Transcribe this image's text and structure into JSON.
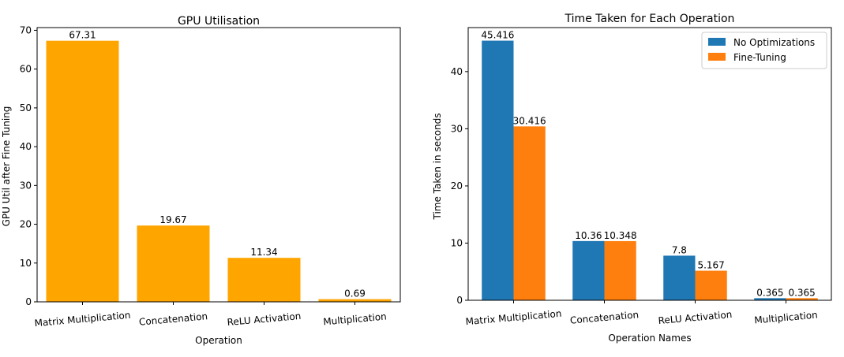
{
  "chart_data": [
    {
      "type": "bar",
      "title": "GPU Utilisation",
      "xlabel": "Operation",
      "ylabel": "GPU Util after Fine Tuning",
      "categories": [
        "Matrix Multiplication",
        "Concatenation",
        "ReLU Activation",
        "Multiplication"
      ],
      "values": [
        67.31,
        19.67,
        11.34,
        0.69
      ],
      "data_labels": [
        "67.31",
        "19.67",
        "11.34",
        "0.69"
      ],
      "yticks": [
        0,
        10,
        20,
        30,
        40,
        50,
        60,
        70
      ],
      "ylim": [
        0,
        70.7
      ],
      "color": "#ffa500",
      "grid": false
    },
    {
      "type": "bar",
      "title": "Time Taken for Each Operation",
      "xlabel": "Operation Names",
      "ylabel": "Time Taken in seconds",
      "categories": [
        "Matrix Multiplication",
        "Concatenation",
        "ReLU Activation",
        "Multiplication"
      ],
      "series": [
        {
          "name": "No Optimizations",
          "color": "#1f77b4",
          "values": [
            45.416,
            10.36,
            7.8,
            0.365
          ],
          "data_labels": [
            "45.416",
            "10.36",
            "7.8",
            "0.365"
          ]
        },
        {
          "name": "Fine-Tuning",
          "color": "#ff7f0e",
          "values": [
            30.416,
            10.348,
            5.167,
            0.365
          ],
          "data_labels": [
            "30.416",
            "10.348",
            "5.167",
            "0.365"
          ]
        }
      ],
      "yticks": [
        0,
        10,
        20,
        30,
        40
      ],
      "ylim": [
        0,
        47.7
      ],
      "legend": "top-right",
      "grid": false
    }
  ]
}
